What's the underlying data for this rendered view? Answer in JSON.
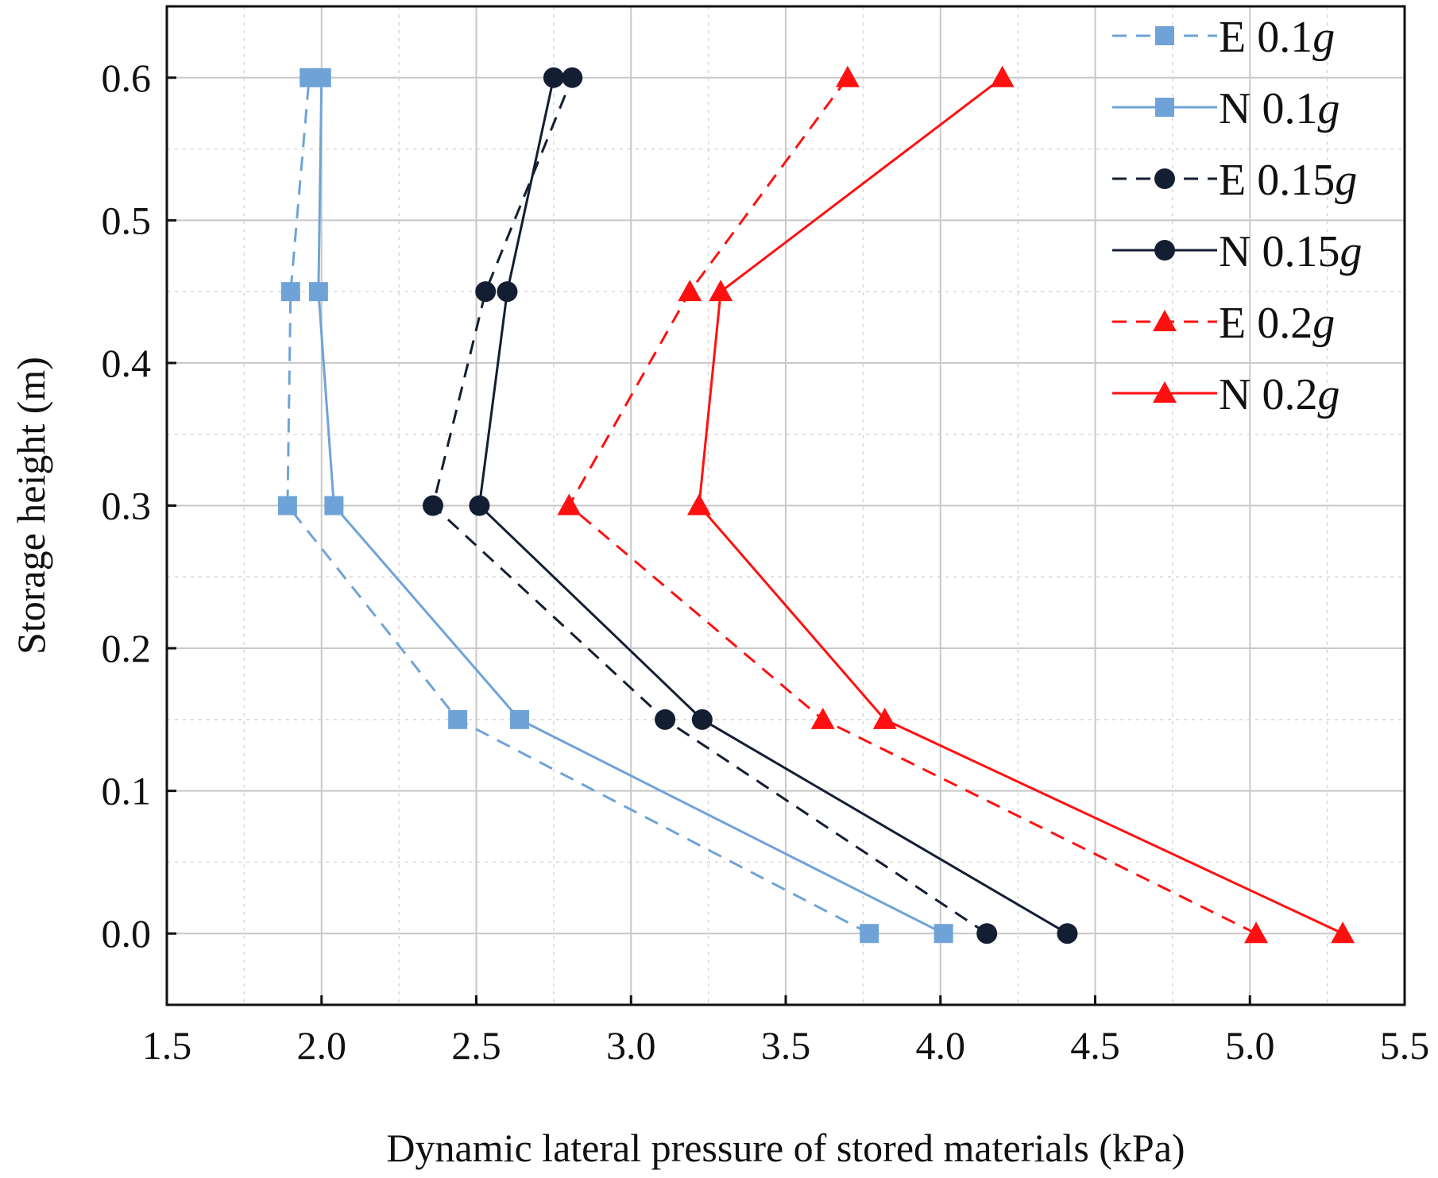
{
  "chart_data": {
    "type": "line",
    "title": "",
    "xlabel": "Dynamic lateral pressure of stored materials (kPa)",
    "ylabel": "Storage height (m)",
    "xlim": [
      1.5,
      5.5
    ],
    "ylim": [
      -0.05,
      0.65
    ],
    "xticks": [
      "1.5",
      "2.0",
      "2.5",
      "3.0",
      "3.5",
      "4.0",
      "4.5",
      "5.0",
      "5.5"
    ],
    "yticks": [
      "0.0",
      "0.1",
      "0.2",
      "0.3",
      "0.4",
      "0.5",
      "0.6"
    ],
    "grid": true,
    "legend_position": "top-right",
    "y_values": [
      0.0,
      0.15,
      0.3,
      0.45,
      0.6
    ],
    "series": [
      {
        "name": "E 0.1g",
        "prefix": "E",
        "pga": "0.1",
        "color": "#6fa3d8",
        "dash": "dashed",
        "marker": "square",
        "x": [
          3.77,
          2.44,
          1.89,
          1.9,
          1.96
        ]
      },
      {
        "name": "N 0.1g",
        "prefix": "N",
        "pga": "0.1",
        "color": "#6fa3d8",
        "dash": "solid",
        "marker": "square",
        "x": [
          4.01,
          2.64,
          2.04,
          1.99,
          2.0
        ]
      },
      {
        "name": "E 0.15g",
        "prefix": "E",
        "pga": "0.15",
        "color": "#141e32",
        "dash": "dashed",
        "marker": "circle",
        "x": [
          4.15,
          3.11,
          2.36,
          2.53,
          2.81
        ]
      },
      {
        "name": "N 0.15g",
        "prefix": "N",
        "pga": "0.15",
        "color": "#141e32",
        "dash": "solid",
        "marker": "circle",
        "x": [
          4.41,
          3.23,
          2.51,
          2.6,
          2.75
        ]
      },
      {
        "name": "E 0.2g",
        "prefix": "E",
        "pga": "0.2",
        "color": "#ff1010",
        "dash": "dashed",
        "marker": "triangle",
        "x": [
          5.02,
          3.62,
          2.8,
          3.19,
          3.7
        ]
      },
      {
        "name": "N 0.2g",
        "prefix": "N",
        "pga": "0.2",
        "color": "#ff1010",
        "dash": "solid",
        "marker": "triangle",
        "x": [
          5.3,
          3.82,
          3.22,
          3.29,
          4.2
        ]
      }
    ],
    "legend_unit": "g"
  }
}
